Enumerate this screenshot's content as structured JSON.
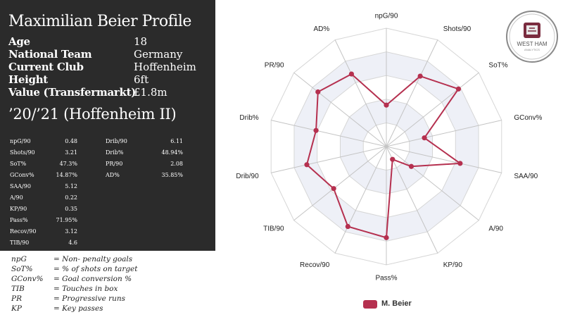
{
  "profile": {
    "title": "Maximilian Beier Profile",
    "rows": [
      {
        "label": "Age",
        "value": "18"
      },
      {
        "label": "National Team",
        "value": "Germany"
      },
      {
        "label": "Current Club",
        "value": "Hoffenheim"
      },
      {
        "label": "Height",
        "value": "6ft"
      },
      {
        "label": "Value (Transfermarkt)",
        "value": "£1.8m"
      }
    ],
    "season": "’20/’21 (Hoffenheim II)"
  },
  "stats_col1": [
    {
      "name": "npG/90",
      "value": "0.48"
    },
    {
      "name": "Shots/90",
      "value": "3.21"
    },
    {
      "name": "SoT%",
      "value": "47.3%"
    },
    {
      "name": "GConv%",
      "value": "14.87%"
    },
    {
      "name": "SAA/90",
      "value": "5.12"
    },
    {
      "name": "A/90",
      "value": "0.22"
    },
    {
      "name": "KP/90",
      "value": "0.35"
    },
    {
      "name": "Pass%",
      "value": "71.95%"
    },
    {
      "name": "Recov/90",
      "value": "3.12"
    },
    {
      "name": "TIB/90",
      "value": "4.6"
    }
  ],
  "stats_col2": [
    {
      "name": "Drib/90",
      "value": "6.11"
    },
    {
      "name": "Drib%",
      "value": "48.94%"
    },
    {
      "name": "PR/90",
      "value": "2.08"
    },
    {
      "name": "AD%",
      "value": "35.85%"
    }
  ],
  "glossary": [
    {
      "abbr": "npG",
      "def": "= Non- penalty goals"
    },
    {
      "abbr": "SoT%",
      "def": "= % of shots on target"
    },
    {
      "abbr": "GConv%",
      "def": "= Goal conversion %"
    },
    {
      "abbr": "TIB",
      "def": "= Touches in box"
    },
    {
      "abbr": "PR",
      "def": "= Progressive runs"
    },
    {
      "abbr": "KP",
      "def": "= Key passes"
    }
  ],
  "logo": {
    "text": "WEST HAM",
    "subtext": "ANALYTICS"
  },
  "chart_data": {
    "type": "radar",
    "axes": [
      "npG/90",
      "Shots/90",
      "SoT%",
      "GConv%",
      "SAA/90",
      "A/90",
      "KP/90",
      "Pass%",
      "Recov/90",
      "TIB/90",
      "Drib/90",
      "Drib%",
      "PR/90",
      "AD%"
    ],
    "range": [
      0,
      1
    ],
    "rings": 5,
    "series": [
      {
        "name": "M. Beier",
        "color": "#b5304f",
        "values": [
          0.35,
          0.66,
          0.78,
          0.33,
          0.64,
          0.27,
          0.12,
          0.77,
          0.75,
          0.57,
          0.69,
          0.61,
          0.74,
          0.68
        ]
      }
    ],
    "legend": "bottom"
  }
}
